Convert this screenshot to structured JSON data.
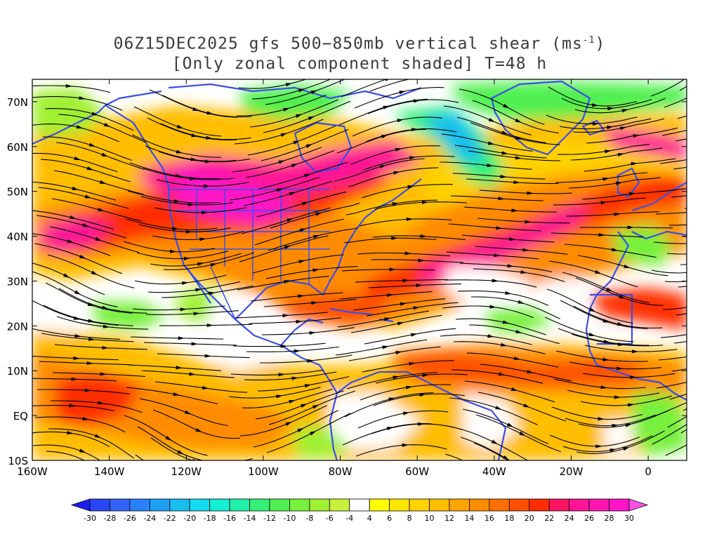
{
  "title": {
    "line1_prefix": "06Z15DEC2025 gfs 500−850mb vertical shear (ms",
    "line1_sup": "-1",
    "line1_suffix": ")",
    "line2": "[Only zonal component shaded] T=48 h"
  },
  "map": {
    "lon_range": [
      -160,
      10
    ],
    "lat_range": [
      -10,
      75
    ],
    "lat_labels": [
      "70N",
      "60N",
      "50N",
      "40N",
      "30N",
      "20N",
      "10N",
      "EQ",
      "10S"
    ],
    "lat_values": [
      70,
      60,
      50,
      40,
      30,
      20,
      10,
      0,
      -10
    ],
    "lon_labels": [
      "160W",
      "140W",
      "120W",
      "100W",
      "80W",
      "60W",
      "40W",
      "20W",
      "0"
    ],
    "lon_values": [
      -160,
      -140,
      -120,
      -100,
      -80,
      -60,
      -40,
      -20,
      0
    ],
    "coastline_color": "#3a4ee8",
    "streamline_color": "#000000"
  },
  "colorbar": {
    "levels": [
      "-30",
      "-28",
      "-26",
      "-24",
      "-22",
      "-20",
      "-18",
      "-16",
      "-14",
      "-12",
      "-10",
      "-8",
      "-6",
      "-4",
      "4",
      "6",
      "8",
      "10",
      "12",
      "14",
      "16",
      "18",
      "20",
      "22",
      "24",
      "26",
      "28",
      "30"
    ],
    "colors": [
      "#1e1ef0",
      "#2846f5",
      "#3264fa",
      "#2a82fa",
      "#1ea0f5",
      "#18bef0",
      "#14dcf0",
      "#14f0d2",
      "#1ef0aa",
      "#32f078",
      "#50f050",
      "#78f03c",
      "#a0f032",
      "#c8f03c",
      "#ffffff",
      "#ffff00",
      "#ffe600",
      "#ffd200",
      "#ffbe00",
      "#ffa500",
      "#ff8c00",
      "#ff6e00",
      "#ff5000",
      "#ff2d00",
      "#ff1464",
      "#ff1496",
      "#ff14b4",
      "#ff14c8",
      "#ff50e6"
    ]
  }
}
